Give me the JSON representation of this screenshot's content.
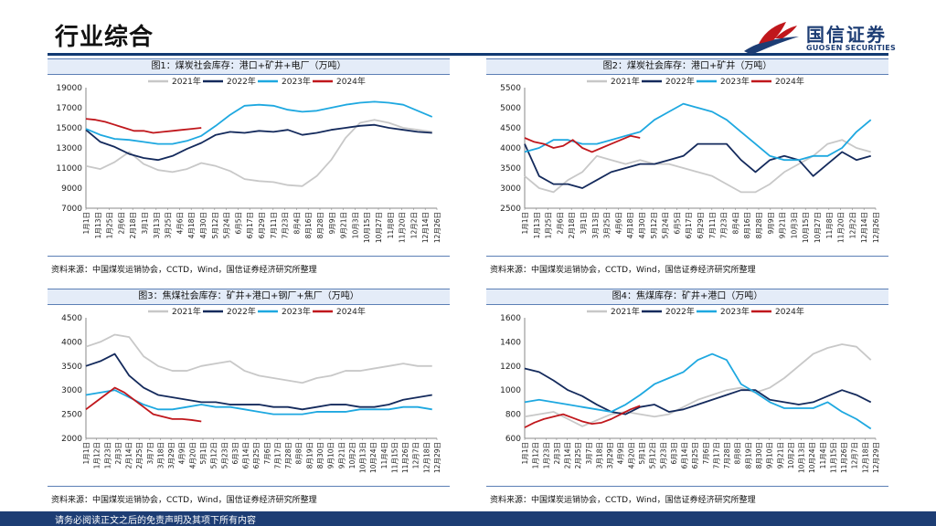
{
  "page": {
    "title": "行业综合"
  },
  "logo": {
    "name_cn": "国信证券",
    "name_en": "GUOSEN SECURITIES"
  },
  "footer": {
    "disclaimer": "请务必阅读正文之后的免责声明及其项下所有内容"
  },
  "colors": {
    "y2021": "#c8c8c8",
    "y2022": "#142a5c",
    "y2023": "#1ea8e0",
    "y2024": "#c0171c"
  },
  "chart_data": [
    {
      "type": "line",
      "title": "图1：煤炭社会库存：港口+矿井+电厂（万吨）",
      "source": "资料来源：中国煤炭运销协会，CCTD，Wind，国信证券经济研究所整理",
      "ylim": [
        7000,
        19000
      ],
      "yticks": [
        7000,
        9000,
        11000,
        13000,
        15000,
        17000,
        19000
      ],
      "xticks": [
        "1月1日",
        "1月13日",
        "1月25日",
        "2月6日",
        "2月18日",
        "3月1日",
        "3月13日",
        "3月25日",
        "4月6日",
        "4月18日",
        "4月30日",
        "5月12日",
        "5月24日",
        "6月5日",
        "6月17日",
        "6月29日",
        "7月11日",
        "7月23日",
        "8月4日",
        "8月16日",
        "8月28日",
        "9月9日",
        "9月21日",
        "10月3日",
        "10月15日",
        "10月27日",
        "11月8日",
        "11月20日",
        "12月2日",
        "12月14日",
        "12月26日"
      ],
      "grid": false,
      "legend": "top",
      "series": [
        {
          "name": "2021年",
          "x": [
            0,
            15,
            30,
            45,
            60,
            75,
            90,
            105,
            120,
            135,
            150,
            165,
            180,
            195,
            210,
            225,
            240,
            255,
            270,
            285,
            300,
            315,
            330,
            345,
            360
          ],
          "values": [
            11200,
            10900,
            11600,
            12600,
            11400,
            10800,
            10600,
            10900,
            11500,
            11200,
            10700,
            9900,
            9700,
            9600,
            9300,
            9200,
            10200,
            11800,
            14000,
            15500,
            15800,
            15500,
            15000,
            14800,
            14600
          ]
        },
        {
          "name": "2022年",
          "x": [
            0,
            15,
            30,
            45,
            60,
            75,
            90,
            105,
            120,
            135,
            150,
            165,
            180,
            195,
            210,
            225,
            240,
            255,
            270,
            285,
            300,
            315,
            330,
            345,
            360
          ],
          "values": [
            14800,
            13600,
            13100,
            12400,
            12000,
            11800,
            12200,
            12900,
            13500,
            14300,
            14600,
            14500,
            14700,
            14600,
            14800,
            14300,
            14500,
            14800,
            15000,
            15200,
            15300,
            15000,
            14800,
            14600,
            14500
          ]
        },
        {
          "name": "2023年",
          "x": [
            0,
            15,
            30,
            45,
            60,
            75,
            90,
            105,
            120,
            135,
            150,
            165,
            180,
            195,
            210,
            225,
            240,
            255,
            270,
            285,
            300,
            315,
            330,
            345,
            360
          ],
          "values": [
            14900,
            14300,
            13900,
            13800,
            13600,
            13400,
            13400,
            13700,
            14200,
            15200,
            16300,
            17200,
            17300,
            17200,
            16800,
            16600,
            16700,
            17000,
            17300,
            17500,
            17600,
            17500,
            17300,
            16700,
            16100
          ]
        },
        {
          "name": "2024年",
          "x": [
            0,
            10,
            20,
            30,
            40,
            50,
            60,
            70,
            80,
            90,
            100,
            110,
            120
          ],
          "values": [
            15900,
            15800,
            15600,
            15300,
            15000,
            14700,
            14700,
            14500,
            14600,
            14700,
            14800,
            14900,
            15000
          ]
        }
      ]
    },
    {
      "type": "line",
      "title": "图2：煤炭社会库存：港口+矿井（万吨）",
      "source": "资料来源：中国煤炭运销协会，CCTD，Wind，国信证券经济研究所整理",
      "ylim": [
        2500,
        5500
      ],
      "yticks": [
        2500,
        3000,
        3500,
        4000,
        4500,
        5000,
        5500
      ],
      "xticks": [
        "1月1日",
        "1月13日",
        "1月25日",
        "2月6日",
        "2月18日",
        "3月1日",
        "3月13日",
        "3月25日",
        "4月6日",
        "4月18日",
        "4月30日",
        "5月12日",
        "5月24日",
        "6月5日",
        "6月17日",
        "6月29日",
        "7月11日",
        "7月23日",
        "8月4日",
        "8月16日",
        "8月28日",
        "9月9日",
        "9月21日",
        "10月3日",
        "10月15日",
        "10月27日",
        "11月8日",
        "11月20日",
        "12月2日",
        "12月14日",
        "12月26日"
      ],
      "grid": false,
      "legend": "top",
      "series": [
        {
          "name": "2021年",
          "x": [
            0,
            15,
            30,
            45,
            60,
            75,
            90,
            105,
            120,
            135,
            150,
            165,
            180,
            195,
            210,
            225,
            240,
            255,
            270,
            285,
            300,
            315,
            330,
            345,
            360
          ],
          "values": [
            3300,
            3000,
            2900,
            3200,
            3400,
            3800,
            3700,
            3600,
            3700,
            3600,
            3600,
            3500,
            3400,
            3300,
            3100,
            2900,
            2900,
            3100,
            3400,
            3600,
            3800,
            4100,
            4200,
            4000,
            3900
          ]
        },
        {
          "name": "2022年",
          "x": [
            0,
            15,
            30,
            45,
            60,
            75,
            90,
            105,
            120,
            135,
            150,
            165,
            180,
            195,
            210,
            225,
            240,
            255,
            270,
            285,
            300,
            315,
            330,
            345,
            360
          ],
          "values": [
            4100,
            3300,
            3100,
            3100,
            3000,
            3200,
            3400,
            3500,
            3600,
            3600,
            3700,
            3800,
            4100,
            4100,
            4100,
            3700,
            3400,
            3700,
            3800,
            3700,
            3300,
            3600,
            3900,
            3700,
            3800
          ]
        },
        {
          "name": "2023年",
          "x": [
            0,
            15,
            30,
            45,
            60,
            75,
            90,
            105,
            120,
            135,
            150,
            165,
            180,
            195,
            210,
            225,
            240,
            255,
            270,
            285,
            300,
            315,
            330,
            345,
            360
          ],
          "values": [
            3900,
            4000,
            4200,
            4200,
            4100,
            4100,
            4200,
            4300,
            4400,
            4700,
            4900,
            5100,
            5000,
            4900,
            4700,
            4400,
            4100,
            3800,
            3700,
            3700,
            3800,
            3800,
            4000,
            4400,
            4700
          ]
        },
        {
          "name": "2024年",
          "x": [
            0,
            10,
            20,
            30,
            40,
            50,
            60,
            70,
            80,
            90,
            100,
            110,
            120
          ],
          "values": [
            4250,
            4150,
            4100,
            4000,
            4050,
            4200,
            4000,
            3900,
            4000,
            4100,
            4200,
            4300,
            4250
          ]
        }
      ]
    },
    {
      "type": "line",
      "title": "图3：焦煤社会库存：矿井+港口+钢厂+焦厂（万吨）",
      "source": "资料来源：中国煤炭运销协会，CCTD，Wind，国信证券经济研究所整理",
      "ylim": [
        2000,
        4500
      ],
      "yticks": [
        2000,
        2500,
        3000,
        3500,
        4000,
        4500
      ],
      "xticks": [
        "1月1日",
        "1月12日",
        "1月23日",
        "2月3日",
        "2月14日",
        "2月25日",
        "3月7日",
        "3月18日",
        "3月29日",
        "4月9日",
        "4月20日",
        "5月1日",
        "5月12日",
        "5月23日",
        "6月3日",
        "6月14日",
        "6月25日",
        "7月6日",
        "7月17日",
        "7月28日",
        "8月8日",
        "8月19日",
        "8月30日",
        "9月10日",
        "9月21日",
        "10月2日",
        "10月13日",
        "10月24日",
        "11月4日",
        "11月15日",
        "11月26日",
        "12月7日",
        "12月18日",
        "12月29日"
      ],
      "grid": false,
      "legend": "top",
      "series": [
        {
          "name": "2021年",
          "x": [
            0,
            15,
            30,
            45,
            60,
            75,
            90,
            105,
            120,
            135,
            150,
            165,
            180,
            195,
            210,
            225,
            240,
            255,
            270,
            285,
            300,
            315,
            330,
            345,
            360
          ],
          "values": [
            3900,
            4000,
            4150,
            4100,
            3700,
            3500,
            3400,
            3400,
            3500,
            3550,
            3600,
            3400,
            3300,
            3250,
            3200,
            3150,
            3250,
            3300,
            3400,
            3400,
            3450,
            3500,
            3550,
            3500,
            3500
          ]
        },
        {
          "name": "2022年",
          "x": [
            0,
            15,
            30,
            45,
            60,
            75,
            90,
            105,
            120,
            135,
            150,
            165,
            180,
            195,
            210,
            225,
            240,
            255,
            270,
            285,
            300,
            315,
            330,
            345,
            360
          ],
          "values": [
            3500,
            3600,
            3750,
            3300,
            3050,
            2900,
            2850,
            2800,
            2750,
            2750,
            2700,
            2700,
            2700,
            2650,
            2650,
            2600,
            2650,
            2700,
            2700,
            2650,
            2650,
            2700,
            2800,
            2850,
            2900
          ]
        },
        {
          "name": "2023年",
          "x": [
            0,
            15,
            30,
            45,
            60,
            75,
            90,
            105,
            120,
            135,
            150,
            165,
            180,
            195,
            210,
            225,
            240,
            255,
            270,
            285,
            300,
            315,
            330,
            345,
            360
          ],
          "values": [
            2900,
            2950,
            3000,
            2850,
            2700,
            2600,
            2600,
            2650,
            2700,
            2650,
            2650,
            2600,
            2550,
            2500,
            2500,
            2500,
            2550,
            2550,
            2550,
            2600,
            2600,
            2600,
            2650,
            2650,
            2600
          ]
        },
        {
          "name": "2024年",
          "x": [
            0,
            10,
            20,
            30,
            40,
            50,
            60,
            70,
            80,
            90,
            100,
            110,
            120
          ],
          "values": [
            2600,
            2750,
            2900,
            3050,
            2950,
            2800,
            2650,
            2500,
            2450,
            2400,
            2400,
            2380,
            2350
          ]
        }
      ]
    },
    {
      "type": "line",
      "title": "图4：焦煤库存：矿井+港口（万吨）",
      "source": "资料来源：中国煤炭运销协会，CCTD，Wind，国信证券经济研究所整理",
      "ylim": [
        600,
        1600
      ],
      "yticks": [
        600,
        800,
        1000,
        1200,
        1400,
        1600
      ],
      "xticks": [
        "1月1日",
        "1月12日",
        "1月23日",
        "2月3日",
        "2月14日",
        "2月25日",
        "3月7日",
        "3月18日",
        "3月29日",
        "4月9日",
        "4月20日",
        "5月1日",
        "5月12日",
        "5月23日",
        "6月3日",
        "6月14日",
        "6月25日",
        "7月6日",
        "7月17日",
        "7月28日",
        "8月8日",
        "8月19日",
        "8月30日",
        "9月10日",
        "9月21日",
        "10月2日",
        "10月13日",
        "10月24日",
        "11月4日",
        "11月15日",
        "11月26日",
        "12月7日",
        "12月18日",
        "12月29日"
      ],
      "grid": false,
      "legend": "top",
      "series": [
        {
          "name": "2021年",
          "x": [
            0,
            15,
            30,
            45,
            60,
            75,
            90,
            105,
            120,
            135,
            150,
            165,
            180,
            195,
            210,
            225,
            240,
            255,
            270,
            285,
            300,
            315,
            330,
            345,
            360
          ],
          "values": [
            780,
            800,
            820,
            760,
            700,
            750,
            800,
            820,
            800,
            780,
            800,
            860,
            920,
            960,
            1000,
            1020,
            980,
            1020,
            1100,
            1200,
            1300,
            1350,
            1380,
            1360,
            1250
          ]
        },
        {
          "name": "2022年",
          "x": [
            0,
            15,
            30,
            45,
            60,
            75,
            90,
            105,
            120,
            135,
            150,
            165,
            180,
            195,
            210,
            225,
            240,
            255,
            270,
            285,
            300,
            315,
            330,
            345,
            360
          ],
          "values": [
            1180,
            1150,
            1080,
            1000,
            950,
            880,
            820,
            800,
            860,
            880,
            820,
            840,
            880,
            920,
            960,
            1000,
            1000,
            920,
            900,
            880,
            900,
            950,
            1000,
            960,
            900
          ]
        },
        {
          "name": "2023年",
          "x": [
            0,
            15,
            30,
            45,
            60,
            75,
            90,
            105,
            120,
            135,
            150,
            165,
            180,
            195,
            210,
            225,
            240,
            255,
            270,
            285,
            300,
            315,
            330,
            345,
            360
          ],
          "values": [
            900,
            920,
            900,
            880,
            860,
            840,
            820,
            880,
            960,
            1050,
            1100,
            1150,
            1250,
            1300,
            1250,
            1050,
            980,
            900,
            850,
            850,
            850,
            900,
            820,
            760,
            680
          ]
        },
        {
          "name": "2024年",
          "x": [
            0,
            10,
            20,
            30,
            40,
            50,
            60,
            70,
            80,
            90,
            100,
            110,
            120
          ],
          "values": [
            690,
            730,
            760,
            780,
            800,
            770,
            740,
            720,
            730,
            760,
            800,
            840,
            870
          ]
        }
      ]
    }
  ]
}
